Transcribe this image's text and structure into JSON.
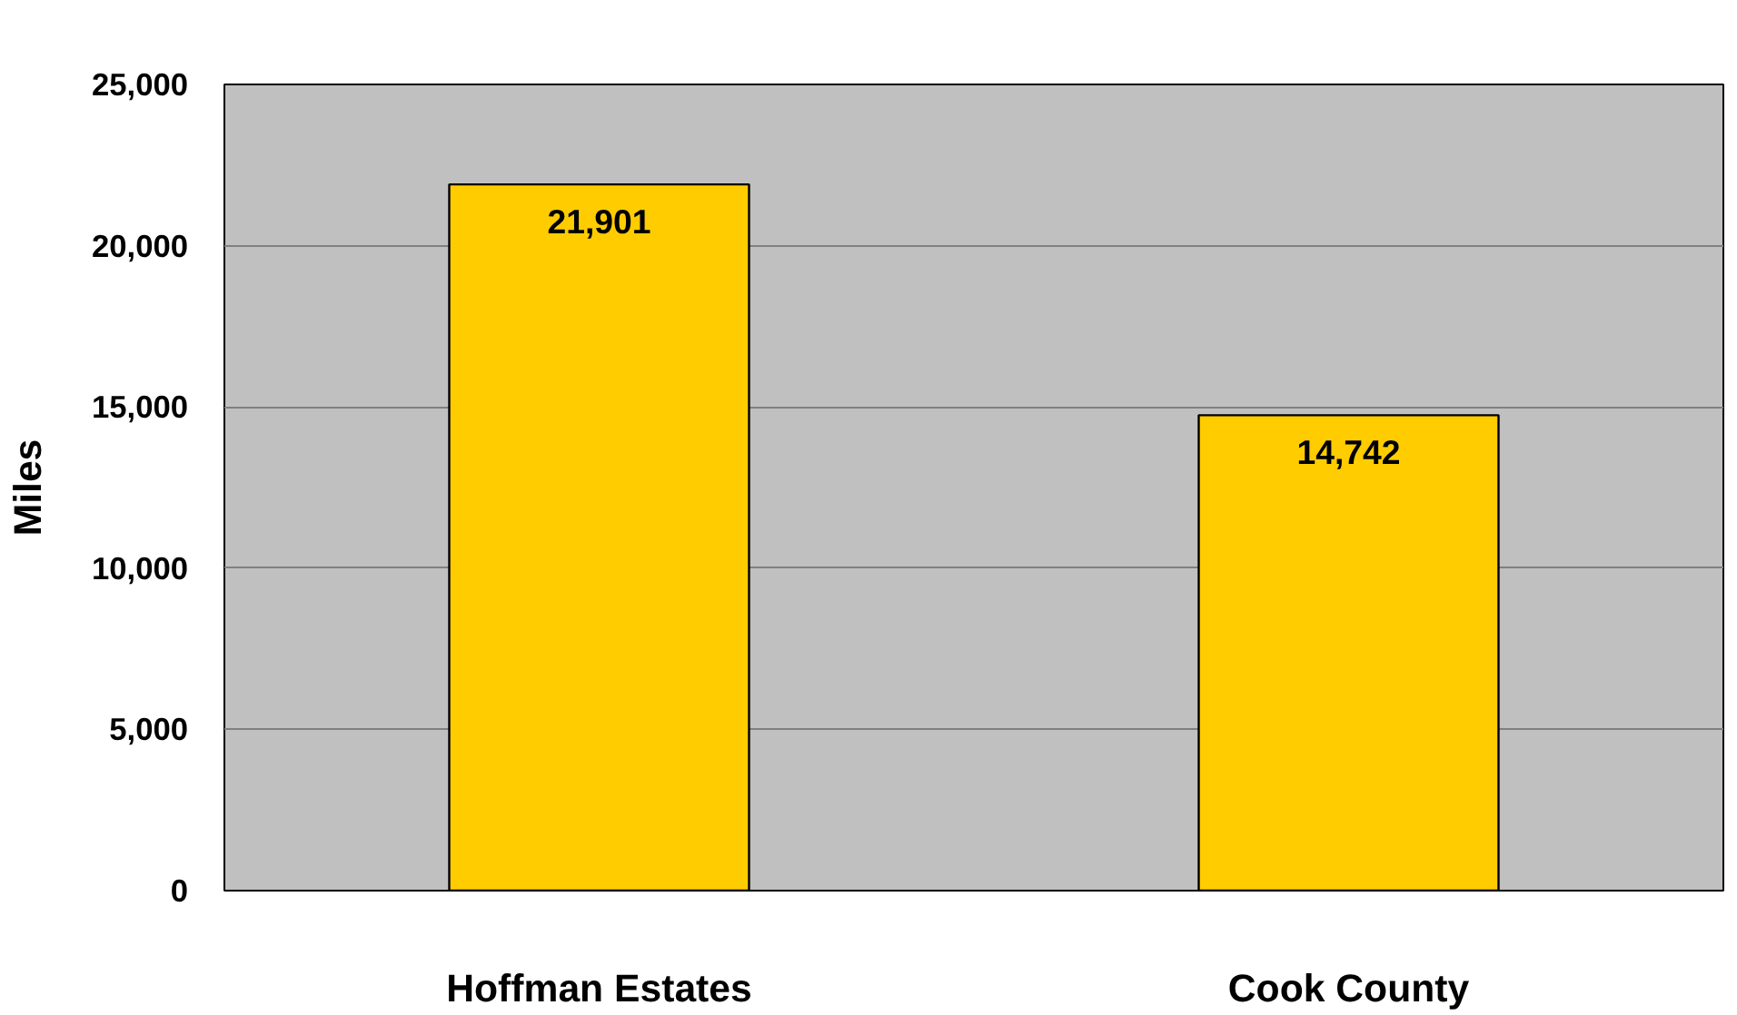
{
  "chart_data": {
    "type": "bar",
    "ylabel": "Miles",
    "categories": [
      "Hoffman Estates",
      "Cook County"
    ],
    "values": [
      21901,
      14742
    ],
    "color": "#ffcc00",
    "ylim": [
      0,
      25000
    ],
    "yticks": [
      0,
      {
        "value": 5000,
        "label": "5,000"
      },
      {
        "value": 10000,
        "label": "10,000"
      },
      {
        "value": 15000,
        "label": "15,000"
      },
      {
        "value": 20000,
        "label": "20,000"
      },
      {
        "value": 25000,
        "label": "25,000"
      }
    ],
    "grid": "y",
    "value_labels": [
      "21,901",
      "14,742"
    ]
  }
}
